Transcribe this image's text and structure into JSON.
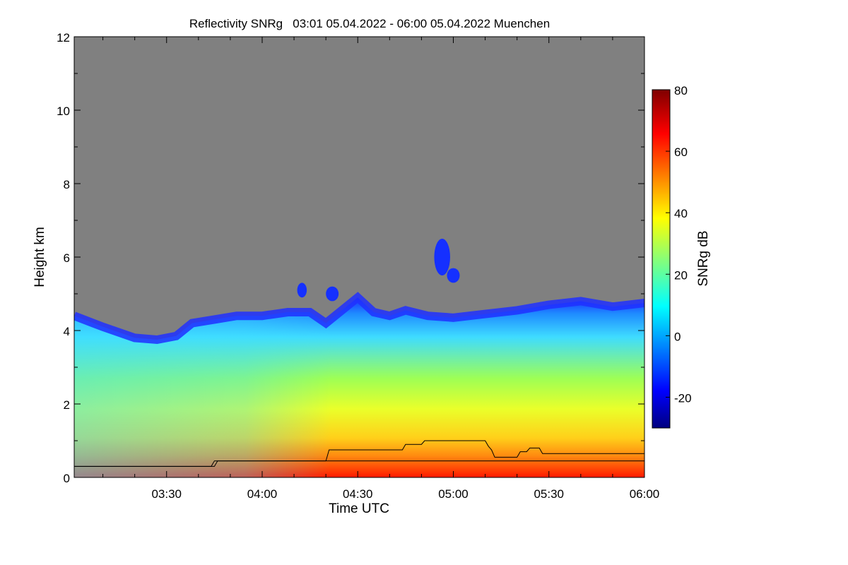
{
  "chart_data": {
    "type": "heatmap",
    "title": "Reflectivity SNRg   03:01 05.04.2022 - 06:00 05.04.2022 Muenchen",
    "xlabel": "Time UTC",
    "ylabel": "Height km",
    "xlim_minutes_utc": [
      181,
      360
    ],
    "ylim": [
      0,
      12
    ],
    "x_ticks": [
      "03:30",
      "04:00",
      "04:30",
      "05:00",
      "05:30",
      "06:00"
    ],
    "y_ticks": [
      "0",
      "2",
      "4",
      "6",
      "8",
      "10",
      "12"
    ],
    "colorbar": {
      "label": "SNRg dB",
      "range": [
        -30,
        80
      ],
      "ticks": [
        "-20",
        "0",
        "20",
        "40",
        "60",
        "80"
      ],
      "colors": [
        "#00007f",
        "#0000ff",
        "#00ffff",
        "#ffff00",
        "#ff0000",
        "#7f0000"
      ]
    },
    "background_color": "#808080",
    "cloud_top_km": [
      [
        181,
        4.4
      ],
      [
        190,
        4.1
      ],
      [
        200,
        3.8
      ],
      [
        207,
        3.75
      ],
      [
        213,
        3.85
      ],
      [
        218,
        4.2
      ],
      [
        225,
        4.3
      ],
      [
        232,
        4.4
      ],
      [
        240,
        4.4
      ],
      [
        248,
        4.5
      ],
      [
        255,
        4.5
      ],
      [
        260,
        4.2
      ],
      [
        265,
        4.55
      ],
      [
        270,
        4.9
      ],
      [
        275,
        4.5
      ],
      [
        280,
        4.4
      ],
      [
        285,
        4.55
      ],
      [
        292,
        4.4
      ],
      [
        300,
        4.35
      ],
      [
        310,
        4.45
      ],
      [
        320,
        4.55
      ],
      [
        330,
        4.7
      ],
      [
        340,
        4.8
      ],
      [
        350,
        4.65
      ],
      [
        360,
        4.75
      ]
    ],
    "cloud_patches": [
      {
        "x": [
          294,
          299
        ],
        "y": [
          5.5,
          6.5
        ]
      },
      {
        "x": [
          298,
          302
        ],
        "y": [
          5.3,
          5.7
        ]
      },
      {
        "x": [
          251,
          254
        ],
        "y": [
          4.9,
          5.3
        ]
      },
      {
        "x": [
          260,
          264
        ],
        "y": [
          4.8,
          5.2
        ]
      }
    ],
    "lines": [
      {
        "name": "upper",
        "points": [
          [
            181,
            0.3
          ],
          [
            225,
            0.3
          ],
          [
            226,
            0.45
          ],
          [
            260,
            0.45
          ],
          [
            261,
            0.75
          ],
          [
            284,
            0.75
          ],
          [
            285,
            0.9
          ],
          [
            290,
            0.9
          ],
          [
            291,
            1.0
          ],
          [
            310,
            1.0
          ],
          [
            311,
            0.85
          ],
          [
            312,
            0.75
          ],
          [
            313,
            0.55
          ],
          [
            320,
            0.55
          ],
          [
            321,
            0.7
          ],
          [
            323,
            0.7
          ],
          [
            324,
            0.8
          ],
          [
            327,
            0.8
          ],
          [
            328,
            0.65
          ],
          [
            360,
            0.65
          ]
        ]
      },
      {
        "name": "lower",
        "points": [
          [
            181,
            0.3
          ],
          [
            224,
            0.3
          ],
          [
            225,
            0.45
          ],
          [
            360,
            0.45
          ]
        ]
      }
    ]
  }
}
